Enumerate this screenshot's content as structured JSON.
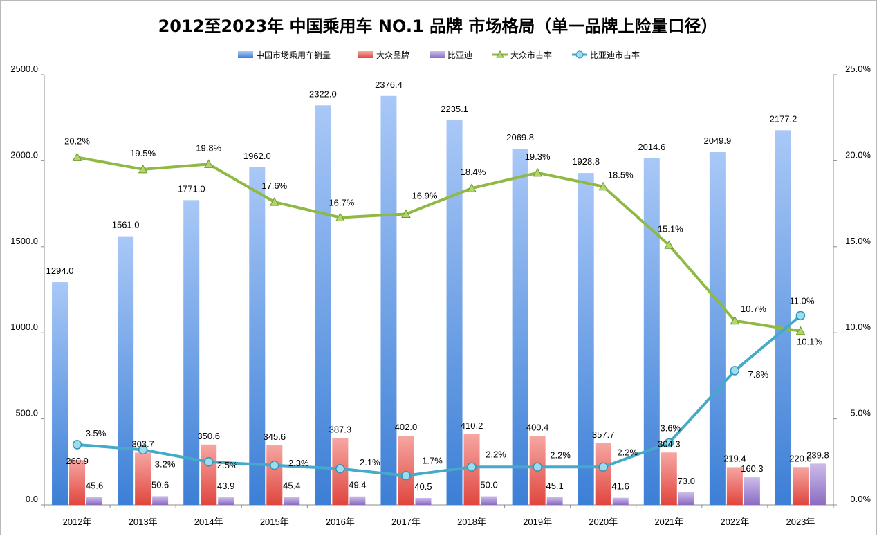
{
  "chart_data": {
    "type": "bar",
    "title": "2012至2023年 中国乘用车 NO.1 品牌 市场格局（单一品牌上险量口径）",
    "categories": [
      "2012年",
      "2013年",
      "2014年",
      "2015年",
      "2016年",
      "2017年",
      "2018年",
      "2019年",
      "2020年",
      "2021年",
      "2022年",
      "2023年"
    ],
    "y_left": {
      "min": 0,
      "max": 2500,
      "ticks": [
        "0.0",
        "500.0",
        "1000.0",
        "1500.0",
        "2000.0",
        "2500.0"
      ]
    },
    "y_right": {
      "min": 0,
      "max": 25,
      "ticks": [
        "0.0%",
        "5.0%",
        "10.0%",
        "15.0%",
        "20.0%",
        "25.0%"
      ]
    },
    "bar_series": [
      {
        "name": "中国市场乘用车销量",
        "color_top": "#a9c8f7",
        "color_bottom": "#3c7fd6",
        "values": [
          1294.0,
          1561.0,
          1771.0,
          1962.0,
          2322.0,
          2376.4,
          2235.1,
          2069.8,
          1928.8,
          2014.6,
          2049.9,
          2177.2
        ],
        "labels": [
          "1294.0",
          "1561.0",
          "1771.0",
          "1962.0",
          "2322.0",
          "2376.4",
          "2235.1",
          "2069.8",
          "1928.8",
          "2014.6",
          "2049.9",
          "2177.2"
        ]
      },
      {
        "name": "大众品牌",
        "color_top": "#f6a6a2",
        "color_bottom": "#e0463e",
        "values": [
          260.9,
          303.7,
          350.6,
          345.6,
          387.3,
          402.0,
          410.2,
          400.4,
          357.7,
          304.3,
          219.4,
          220.0
        ],
        "labels": [
          "260.9",
          "303.7",
          "350.6",
          "345.6",
          "387.3",
          "402.0",
          "410.2",
          "400.4",
          "357.7",
          "304.3",
          "219.4",
          "220.0"
        ]
      },
      {
        "name": "比亚迪",
        "color_top": "#cdbce9",
        "color_bottom": "#8a6cc2",
        "values": [
          45.6,
          50.6,
          43.9,
          45.4,
          49.4,
          40.5,
          50.0,
          45.1,
          41.6,
          73.0,
          160.3,
          239.8
        ],
        "labels": [
          "45.6",
          "50.6",
          "43.9",
          "45.4",
          "49.4",
          "40.5",
          "50.0",
          "45.1",
          "41.6",
          "73.0",
          "160.3",
          "239.8"
        ]
      }
    ],
    "line_series": [
      {
        "name": "大众市占率",
        "color": "#8fb944",
        "marker": "triangle",
        "values": [
          20.2,
          19.5,
          19.8,
          17.6,
          16.7,
          16.9,
          18.4,
          19.3,
          18.5,
          15.1,
          10.7,
          10.1
        ],
        "labels": [
          "20.2%",
          "19.5%",
          "19.8%",
          "17.6%",
          "16.7%",
          "16.9%",
          "18.4%",
          "19.3%",
          "18.5%",
          "15.1%",
          "10.7%",
          "10.1%"
        ]
      },
      {
        "name": "比亚迪市占率",
        "color": "#45a9c9",
        "marker": "circle",
        "values": [
          3.5,
          3.2,
          2.5,
          2.3,
          2.1,
          1.7,
          2.2,
          2.2,
          2.2,
          3.6,
          7.8,
          11.0
        ],
        "labels": [
          "3.5%",
          "3.2%",
          "2.5%",
          "2.3%",
          "2.1%",
          "1.7%",
          "2.2%",
          "2.2%",
          "2.2%",
          "3.6%",
          "7.8%",
          "11.0%"
        ]
      }
    ],
    "legend_position": "top-center",
    "grid": false
  }
}
